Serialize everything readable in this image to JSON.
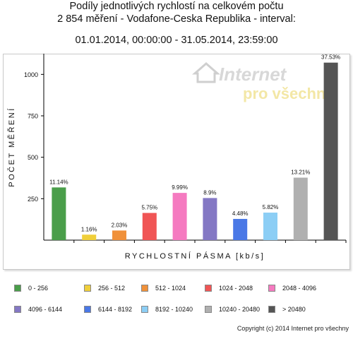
{
  "title": {
    "line1": "Podíly jednotlivých rychlostí na celkovém počtu",
    "line2": "2 854 měření - Vodafone-Ceska Republika - interval:",
    "line3": "01.01.2014, 00:00:00 - 31.05.2014, 23:59:00"
  },
  "watermark": {
    "line1": "Internet",
    "line2": "pro všechny",
    "icon": "house-icon"
  },
  "copyright": "Copyright (c) 2014 Internet pro všechny",
  "chart_data": {
    "type": "bar",
    "xlabel": "RYCHLOSTNÍ PÁSMA [kb/s]",
    "ylabel": "POČET MĚŘENÍ",
    "ylim": [
      0,
      1125
    ],
    "yticks": [
      250,
      500,
      750,
      1000
    ],
    "grid": false,
    "legend_position": "bottom",
    "categories": [
      "0 - 256",
      "256 - 512",
      "512 - 1024",
      "1024 - 2048",
      "2048 - 4096",
      "4096 - 6144",
      "6144 - 8192",
      "8192 - 10240",
      "10240 - 20480",
      "> 20480"
    ],
    "values": [
      318,
      33,
      58,
      164,
      285,
      254,
      128,
      166,
      377,
      1071
    ],
    "labels": [
      "11.14%",
      "1.16%",
      "2.03%",
      "5.75%",
      "9.99%",
      "8.9%",
      "4.48%",
      "5.82%",
      "13.21%",
      "37.53%"
    ],
    "colors": [
      "#4a9e4a",
      "#f0cf3a",
      "#f0913a",
      "#f05555",
      "#f57ac0",
      "#8478c4",
      "#4a78e6",
      "#8ccef5",
      "#b0b0b0",
      "#555555"
    ]
  }
}
